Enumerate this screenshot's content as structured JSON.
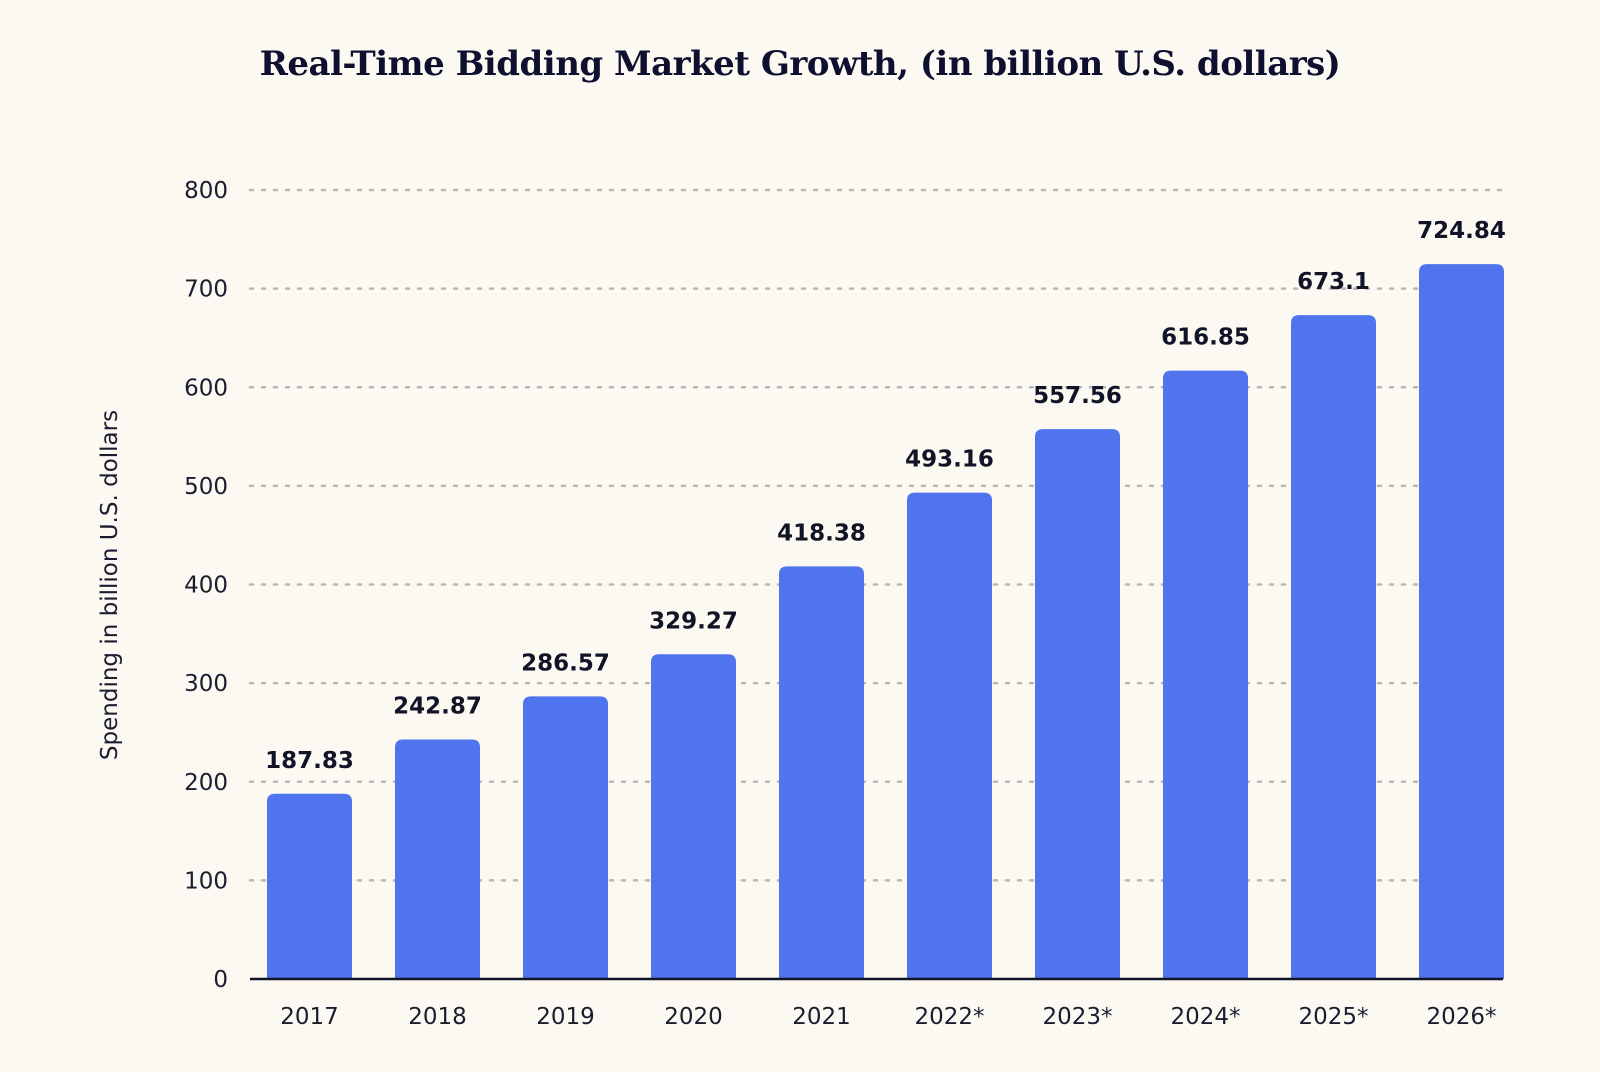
{
  "chart_data": {
    "type": "bar",
    "title": "Real-Time Bidding Market Growth, (in billion U.S. dollars)",
    "xlabel": "",
    "ylabel": "Spending in billion U.S. dollars",
    "categories": [
      "2017",
      "2018",
      "2019",
      "2020",
      "2021",
      "2022*",
      "2023*",
      "2024*",
      "2025*",
      "2026*"
    ],
    "values": [
      187.83,
      242.87,
      286.57,
      329.27,
      418.38,
      493.16,
      557.56,
      616.85,
      673.1,
      724.84
    ],
    "data_labels": [
      "187.83",
      "242.87",
      "286.57",
      "329.27",
      "418.38",
      "493.16",
      "557.56",
      "616.85",
      "673.1",
      "724.84"
    ],
    "ylim": [
      0,
      800
    ],
    "yticks": [
      0,
      100,
      200,
      300,
      400,
      500,
      600,
      700,
      800
    ],
    "grid": "horizontal dotted",
    "legend": "none",
    "colors": {
      "bar": "#5073ee",
      "background": "#fcf9f2",
      "grid": "#b9b7b4",
      "text": "#111327"
    }
  }
}
